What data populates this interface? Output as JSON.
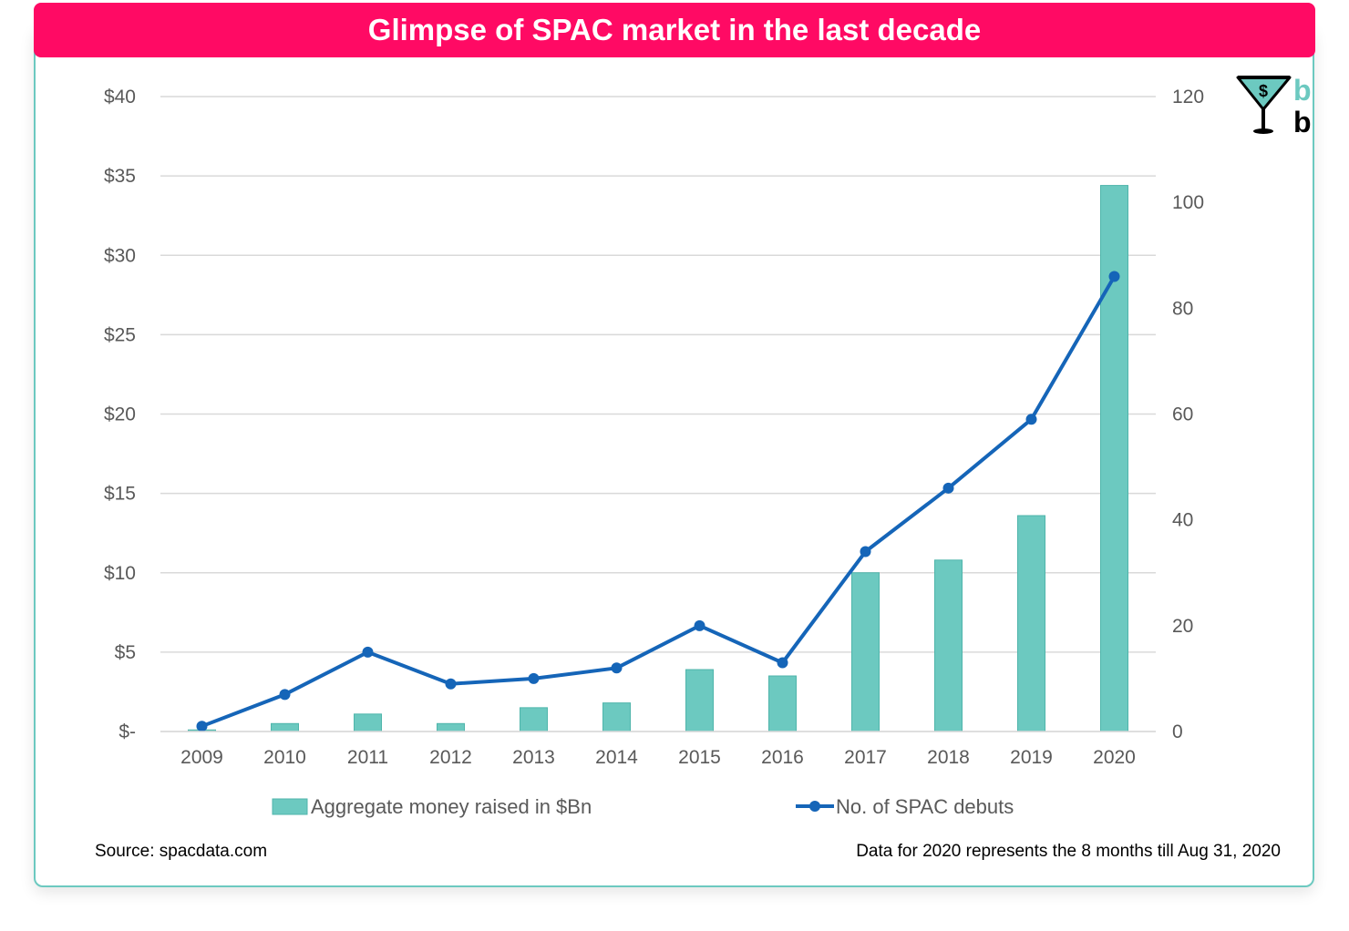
{
  "chart_data": {
    "type": "bar",
    "title": "Glimpse of SPAC market in the last decade",
    "categories": [
      "2009",
      "2010",
      "2011",
      "2012",
      "2013",
      "2014",
      "2015",
      "2016",
      "2017",
      "2018",
      "2019",
      "2020"
    ],
    "series": [
      {
        "name": "Aggregate money raised in $Bn",
        "type": "bar",
        "axis": "left",
        "color": "#6cc9c0",
        "values": [
          0.1,
          0.5,
          1.1,
          0.5,
          1.5,
          1.8,
          3.9,
          3.5,
          10.0,
          10.8,
          13.6,
          34.4
        ]
      },
      {
        "name": "No. of SPAC debuts",
        "type": "line",
        "axis": "right",
        "color": "#1565b8",
        "values": [
          1,
          7,
          15,
          9,
          10,
          12,
          20,
          13,
          34,
          46,
          59,
          86
        ]
      }
    ],
    "y_left": {
      "min": 0,
      "max": 40,
      "ticks": [
        0,
        5,
        10,
        15,
        20,
        25,
        30,
        35,
        40
      ],
      "tick_labels": [
        "$-",
        "$5",
        "$10",
        "$15",
        "$20",
        "$25",
        "$30",
        "$35",
        "$40"
      ]
    },
    "y_right": {
      "min": 0,
      "max": 120,
      "ticks": [
        0,
        20,
        40,
        60,
        80,
        100,
        120
      ],
      "tick_labels": [
        "0",
        "20",
        "40",
        "60",
        "80",
        "100",
        "120"
      ]
    },
    "grid": true,
    "legend": "bottom"
  },
  "footer": {
    "source": "Source: spacdata.com",
    "note": "Data for 2020 represents the 8 months till Aug 31, 2020"
  },
  "logo": {
    "icon": "martini-glass-icon",
    "glyph": "$",
    "letter_top": "b",
    "letter_bottom": "b"
  },
  "colors": {
    "banner": "#ff0a64",
    "border": "#6cc9c0",
    "grid": "#d9d9d9",
    "axis_text": "#595959"
  }
}
